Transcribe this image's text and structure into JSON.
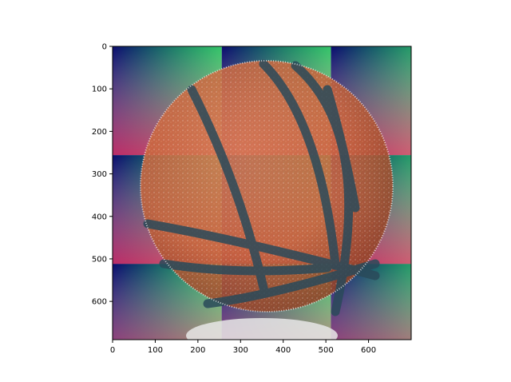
{
  "figure": {
    "image": {
      "subject": "basketball",
      "width_units": 700,
      "height_units": 690,
      "tiles": {
        "cols": 3,
        "rows": 3
      },
      "tile_colors": {
        "top_left": "#0a0a6e",
        "top_right": "#1ef07a",
        "bottom_left": "#f0207a",
        "bottom_right": "#e0a87a"
      },
      "ball_color": "#c8643c",
      "seam_color": "#2a4a5a",
      "speckle_color": "#ffffff"
    },
    "x_axis": {
      "range": [
        0,
        700
      ],
      "ticks": [
        0,
        100,
        200,
        300,
        400,
        500,
        600
      ],
      "tick_labels": [
        "0",
        "100",
        "200",
        "300",
        "400",
        "500",
        "600"
      ]
    },
    "y_axis": {
      "range": [
        0,
        690
      ],
      "inverted": true,
      "ticks": [
        0,
        100,
        200,
        300,
        400,
        500,
        600
      ],
      "tick_labels": [
        "0",
        "100",
        "200",
        "300",
        "400",
        "500",
        "600"
      ]
    }
  }
}
